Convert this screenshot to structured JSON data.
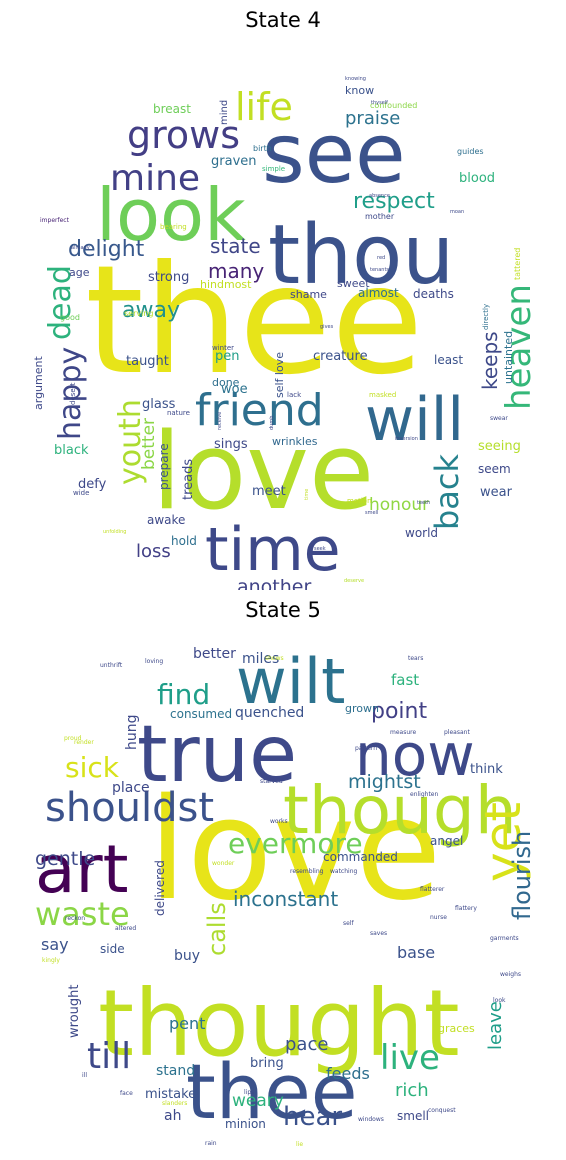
{
  "chart_data": [
    {
      "type": "wordcloud",
      "title": "State 4",
      "words": [
        {
          "text": "thee",
          "weight": 1.0,
          "color": "#e7e419"
        },
        {
          "text": "love",
          "weight": 0.82,
          "color": "#b5de2b"
        },
        {
          "text": "see",
          "weight": 0.6,
          "color": "#3b528b"
        },
        {
          "text": "thou",
          "weight": 0.6,
          "color": "#3b528b"
        },
        {
          "text": "look",
          "weight": 0.55,
          "color": "#6ece58"
        },
        {
          "text": "time",
          "weight": 0.48,
          "color": "#3e4989"
        },
        {
          "text": "will",
          "weight": 0.45,
          "color": "#31688e"
        },
        {
          "text": "friend",
          "weight": 0.38,
          "color": "#2e6f8e"
        },
        {
          "text": "grows",
          "weight": 0.3,
          "color": "#433e85"
        },
        {
          "text": "life",
          "weight": 0.3,
          "color": "#c2df23"
        },
        {
          "text": "mine",
          "weight": 0.27,
          "color": "#424086"
        },
        {
          "text": "dead",
          "weight": 0.28,
          "color": "#2db27d"
        },
        {
          "text": "heaven",
          "weight": 0.28,
          "color": "#35b779"
        },
        {
          "text": "youth",
          "weight": 0.27,
          "color": "#addc30"
        },
        {
          "text": "happy",
          "weight": 0.27,
          "color": "#3f4788"
        },
        {
          "text": "back",
          "weight": 0.27,
          "color": "#26828e"
        },
        {
          "text": "delight",
          "weight": 0.2,
          "color": "#38588c"
        },
        {
          "text": "respect",
          "weight": 0.2,
          "color": "#1f9e89"
        },
        {
          "text": "state",
          "weight": 0.18,
          "color": "#404688"
        },
        {
          "text": "many",
          "weight": 0.18,
          "color": "#482475"
        },
        {
          "text": "away",
          "weight": 0.18,
          "color": "#21918c"
        },
        {
          "text": "keeps",
          "weight": 0.18,
          "color": "#3e4989"
        },
        {
          "text": "praise",
          "weight": 0.16,
          "color": "#2c728e"
        },
        {
          "text": "another",
          "weight": 0.16,
          "color": "#414487"
        },
        {
          "text": "loss",
          "weight": 0.15,
          "color": "#424086"
        },
        {
          "text": "honour",
          "weight": 0.14,
          "color": "#90d743"
        },
        {
          "text": "better",
          "weight": 0.15,
          "color": "#8bd646"
        },
        {
          "text": "strong",
          "weight": 0.12,
          "color": "#3e4989"
        },
        {
          "text": "creature",
          "weight": 0.12,
          "color": "#3b528b"
        },
        {
          "text": "wrinkles",
          "weight": 0.11,
          "color": "#31688e"
        },
        {
          "text": "shame",
          "weight": 0.1,
          "color": "#3f4788"
        },
        {
          "text": "almost",
          "weight": 0.1,
          "color": "#2e6f8e"
        },
        {
          "text": "deaths",
          "weight": 0.1,
          "color": "#3e4989"
        },
        {
          "text": "taught",
          "weight": 0.1,
          "color": "#3b528b"
        },
        {
          "text": "woe",
          "weight": 0.1,
          "color": "#2c728e"
        },
        {
          "text": "pen",
          "weight": 0.1,
          "color": "#1f9e89"
        },
        {
          "text": "done",
          "weight": 0.09,
          "color": "#2e6f8e"
        },
        {
          "text": "glass",
          "weight": 0.1,
          "color": "#3b528b"
        },
        {
          "text": "sings",
          "weight": 0.1,
          "color": "#3e4989"
        },
        {
          "text": "treads",
          "weight": 0.1,
          "color": "#3e4989"
        },
        {
          "text": "prepare",
          "weight": 0.09,
          "color": "#3b528b"
        },
        {
          "text": "defy",
          "weight": 0.1,
          "color": "#3e4989"
        },
        {
          "text": "black",
          "weight": 0.1,
          "color": "#2db27d"
        },
        {
          "text": "argument",
          "weight": 0.09,
          "color": "#3e4989"
        },
        {
          "text": "seeing",
          "weight": 0.1,
          "color": "#b5de2b"
        },
        {
          "text": "seem",
          "weight": 0.09,
          "color": "#3e4989"
        },
        {
          "text": "wear",
          "weight": 0.1,
          "color": "#3b528b"
        },
        {
          "text": "least",
          "weight": 0.09,
          "color": "#3b528b"
        },
        {
          "text": "untainted",
          "weight": 0.09,
          "color": "#2c728e"
        },
        {
          "text": "awake",
          "weight": 0.09,
          "color": "#3e4989"
        },
        {
          "text": "meet",
          "weight": 0.09,
          "color": "#3b528b"
        },
        {
          "text": "world",
          "weight": 0.09,
          "color": "#3e4989"
        },
        {
          "text": "hold",
          "weight": 0.09,
          "color": "#2e6f8e"
        },
        {
          "text": "blood",
          "weight": 0.1,
          "color": "#2db27d"
        },
        {
          "text": "graven",
          "weight": 0.1,
          "color": "#2e6f8e"
        },
        {
          "text": "breast",
          "weight": 0.1,
          "color": "#6ece58"
        },
        {
          "text": "mind",
          "weight": 0.08,
          "color": "#3e4989"
        },
        {
          "text": "know",
          "weight": 0.08,
          "color": "#3b528b"
        },
        {
          "text": "hindmost",
          "weight": 0.08,
          "color": "#c2df23"
        },
        {
          "text": "sweet",
          "weight": 0.08,
          "color": "#3e4989"
        },
        {
          "text": "self love",
          "weight": 0.08,
          "color": "#3b528b"
        },
        {
          "text": "age",
          "weight": 0.08,
          "color": "#3e4989"
        },
        {
          "text": "good",
          "weight": 0.05,
          "color": "#6ece58"
        },
        {
          "text": "serving",
          "weight": 0.05,
          "color": "#b5de2b"
        },
        {
          "text": "confounded",
          "weight": 0.05,
          "color": "#8bd646"
        },
        {
          "text": "birth",
          "weight": 0.05,
          "color": "#2e6f8e"
        },
        {
          "text": "simple",
          "weight": 0.04,
          "color": "#35b779"
        },
        {
          "text": "mother",
          "weight": 0.04,
          "color": "#3e4989"
        },
        {
          "text": "guides",
          "weight": 0.04,
          "color": "#2e6f8e"
        },
        {
          "text": "tattered",
          "weight": 0.04,
          "color": "#c2df23"
        },
        {
          "text": "directly",
          "weight": 0.04,
          "color": "#2e6f8e"
        },
        {
          "text": "masked",
          "weight": 0.04,
          "color": "#c2df23"
        },
        {
          "text": "motion",
          "weight": 0.04,
          "color": "#c2df23"
        },
        {
          "text": "winter",
          "weight": 0.04,
          "color": "#3e4989"
        },
        {
          "text": "nature",
          "weight": 0.04,
          "color": "#3e4989"
        },
        {
          "text": "lack",
          "weight": 0.04,
          "color": "#3e4989"
        },
        {
          "text": "desert",
          "weight": 0.04,
          "color": "#3e4989"
        },
        {
          "text": "wide",
          "weight": 0.04,
          "color": "#3e4989"
        },
        {
          "text": "imperfect",
          "weight": 0.03,
          "color": "#482475"
        },
        {
          "text": "bearing",
          "weight": 0.03,
          "color": "#c2df23"
        },
        {
          "text": "already",
          "weight": 0.03,
          "color": "#3e4989"
        },
        {
          "text": "unfolding",
          "weight": 0.03,
          "color": "#c2df23"
        },
        {
          "text": "receive",
          "weight": 0.03,
          "color": "#3e4989"
        },
        {
          "text": "dumb",
          "weight": 0.03,
          "color": "#3e4989"
        },
        {
          "text": "gives",
          "weight": 0.03,
          "color": "#3e4989"
        },
        {
          "text": "red",
          "weight": 0.03,
          "color": "#3e4989"
        },
        {
          "text": "swear",
          "weight": 0.03,
          "color": "#3e4989"
        },
        {
          "text": "inversion",
          "weight": 0.03,
          "color": "#3e4989"
        },
        {
          "text": "tenants",
          "weight": 0.03,
          "color": "#3e4989"
        },
        {
          "text": "absence",
          "weight": 0.03,
          "color": "#3e4989"
        },
        {
          "text": "moan",
          "weight": 0.03,
          "color": "#3e4989"
        },
        {
          "text": "thyself",
          "weight": 0.03,
          "color": "#3e4989"
        },
        {
          "text": "knowing",
          "weight": 0.03,
          "color": "#3e4989"
        },
        {
          "text": "deserve",
          "weight": 0.03,
          "color": "#b5de2b"
        },
        {
          "text": "seek",
          "weight": 0.03,
          "color": "#3e4989"
        },
        {
          "text": "smell",
          "weight": 0.03,
          "color": "#3e4989"
        },
        {
          "text": "teeth",
          "weight": 0.03,
          "color": "#3e4989"
        },
        {
          "text": "time",
          "weight": 0.03,
          "color": "#c2df23"
        }
      ]
    },
    {
      "type": "wordcloud",
      "title": "State 5",
      "words": [
        {
          "text": "love",
          "weight": 1.0,
          "color": "#e7e419"
        },
        {
          "text": "thought",
          "weight": 0.68,
          "color": "#c2df23"
        },
        {
          "text": "true",
          "weight": 0.62,
          "color": "#3e4989"
        },
        {
          "text": "thee",
          "weight": 0.55,
          "color": "#3b528b"
        },
        {
          "text": "though",
          "weight": 0.5,
          "color": "#b5de2b"
        },
        {
          "text": "art",
          "weight": 0.5,
          "color": "#440154"
        },
        {
          "text": "wilt",
          "weight": 0.45,
          "color": "#2c728e"
        },
        {
          "text": "now",
          "weight": 0.45,
          "color": "#3e4989"
        },
        {
          "text": "yet",
          "weight": 0.42,
          "color": "#d8e219"
        },
        {
          "text": "shouldst",
          "weight": 0.35,
          "color": "#3b528b"
        },
        {
          "text": "waste",
          "weight": 0.28,
          "color": "#8bd646"
        },
        {
          "text": "till",
          "weight": 0.27,
          "color": "#3e4989"
        },
        {
          "text": "live",
          "weight": 0.27,
          "color": "#2db27d"
        },
        {
          "text": "evermore",
          "weight": 0.24,
          "color": "#6ece58"
        },
        {
          "text": "find",
          "weight": 0.22,
          "color": "#1f9e89"
        },
        {
          "text": "sick",
          "weight": 0.22,
          "color": "#d8e219"
        },
        {
          "text": "calls",
          "weight": 0.2,
          "color": "#addc30"
        },
        {
          "text": "flourish",
          "weight": 0.2,
          "color": "#31688e"
        },
        {
          "text": "hear",
          "weight": 0.2,
          "color": "#3b528b"
        },
        {
          "text": "point",
          "weight": 0.17,
          "color": "#424086"
        },
        {
          "text": "inconstant",
          "weight": 0.17,
          "color": "#2c728e"
        },
        {
          "text": "gentle",
          "weight": 0.15,
          "color": "#3e4989"
        },
        {
          "text": "mightst",
          "weight": 0.15,
          "color": "#2c728e"
        },
        {
          "text": "pace",
          "weight": 0.16,
          "color": "#3b528b"
        },
        {
          "text": "feeds",
          "weight": 0.14,
          "color": "#2e6f8e"
        },
        {
          "text": "rich",
          "weight": 0.14,
          "color": "#2db27d"
        },
        {
          "text": "say",
          "weight": 0.14,
          "color": "#3b528b"
        },
        {
          "text": "leave",
          "weight": 0.14,
          "color": "#1f9e89"
        },
        {
          "text": "fast",
          "weight": 0.13,
          "color": "#2db27d"
        },
        {
          "text": "miles",
          "weight": 0.12,
          "color": "#3b528b"
        },
        {
          "text": "better",
          "weight": 0.12,
          "color": "#3e4989"
        },
        {
          "text": "quenched",
          "weight": 0.12,
          "color": "#3b528b"
        },
        {
          "text": "consumed",
          "weight": 0.11,
          "color": "#2c728e"
        },
        {
          "text": "grown",
          "weight": 0.1,
          "color": "#2e6f8e"
        },
        {
          "text": "hung",
          "weight": 0.1,
          "color": "#3e4989"
        },
        {
          "text": "place",
          "weight": 0.11,
          "color": "#3e4989"
        },
        {
          "text": "think",
          "weight": 0.11,
          "color": "#3b528b"
        },
        {
          "text": "angel",
          "weight": 0.12,
          "color": "#3b528b"
        },
        {
          "text": "commanded",
          "weight": 0.11,
          "color": "#3b528b"
        },
        {
          "text": "delivered",
          "weight": 0.1,
          "color": "#3e4989"
        },
        {
          "text": "buy",
          "weight": 0.12,
          "color": "#3b528b"
        },
        {
          "text": "base",
          "weight": 0.13,
          "color": "#3b528b"
        },
        {
          "text": "side",
          "weight": 0.1,
          "color": "#3b528b"
        },
        {
          "text": "wrought",
          "weight": 0.1,
          "color": "#3e4989"
        },
        {
          "text": "pent",
          "weight": 0.13,
          "color": "#2c728e"
        },
        {
          "text": "bring",
          "weight": 0.12,
          "color": "#3b528b"
        },
        {
          "text": "stand",
          "weight": 0.12,
          "color": "#2c728e"
        },
        {
          "text": "mistake",
          "weight": 0.11,
          "color": "#3b528b"
        },
        {
          "text": "weary",
          "weight": 0.14,
          "color": "#2db27d"
        },
        {
          "text": "ah",
          "weight": 0.11,
          "color": "#3e4989"
        },
        {
          "text": "minion",
          "weight": 0.1,
          "color": "#3b528b"
        },
        {
          "text": "smell",
          "weight": 0.1,
          "color": "#3e4989"
        },
        {
          "text": "graces",
          "weight": 0.08,
          "color": "#c2df23"
        },
        {
          "text": "unthrift",
          "weight": 0.04,
          "color": "#3e4989"
        },
        {
          "text": "loving",
          "weight": 0.04,
          "color": "#3e4989"
        },
        {
          "text": "proud",
          "weight": 0.04,
          "color": "#c2df23"
        },
        {
          "text": "render",
          "weight": 0.04,
          "color": "#c2df23"
        },
        {
          "text": "pattern",
          "weight": 0.04,
          "color": "#3e4989"
        },
        {
          "text": "measure",
          "weight": 0.04,
          "color": "#3e4989"
        },
        {
          "text": "pleasant",
          "weight": 0.04,
          "color": "#3e4989"
        },
        {
          "text": "enlighten",
          "weight": 0.04,
          "color": "#3e4989"
        },
        {
          "text": "starved",
          "weight": 0.04,
          "color": "#3e4989"
        },
        {
          "text": "works",
          "weight": 0.04,
          "color": "#3e4989"
        },
        {
          "text": "wonder",
          "weight": 0.04,
          "color": "#c2df23"
        },
        {
          "text": "resembling",
          "weight": 0.04,
          "color": "#3e4989"
        },
        {
          "text": "watching",
          "weight": 0.04,
          "color": "#3e4989"
        },
        {
          "text": "flatterer",
          "weight": 0.04,
          "color": "#3e4989"
        },
        {
          "text": "flattery",
          "weight": 0.04,
          "color": "#3e4989"
        },
        {
          "text": "reckon",
          "weight": 0.04,
          "color": "#3e4989"
        },
        {
          "text": "altered",
          "weight": 0.04,
          "color": "#3e4989"
        },
        {
          "text": "kingly",
          "weight": 0.04,
          "color": "#c2df23"
        },
        {
          "text": "garments",
          "weight": 0.04,
          "color": "#3e4989"
        },
        {
          "text": "weighs",
          "weight": 0.04,
          "color": "#3e4989"
        },
        {
          "text": "nurse",
          "weight": 0.04,
          "color": "#3e4989"
        },
        {
          "text": "slanders",
          "weight": 0.04,
          "color": "#c2df23"
        },
        {
          "text": "conquest",
          "weight": 0.04,
          "color": "#3e4989"
        },
        {
          "text": "windows",
          "weight": 0.04,
          "color": "#3e4989"
        },
        {
          "text": "lips",
          "weight": 0.04,
          "color": "#3e4989"
        },
        {
          "text": "face",
          "weight": 0.04,
          "color": "#3e4989"
        },
        {
          "text": "saves",
          "weight": 0.04,
          "color": "#3e4989"
        },
        {
          "text": "self",
          "weight": 0.04,
          "color": "#3e4989"
        },
        {
          "text": "ill",
          "weight": 0.04,
          "color": "#3e4989"
        },
        {
          "text": "look",
          "weight": 0.04,
          "color": "#3e4989"
        },
        {
          "text": "rain",
          "weight": 0.04,
          "color": "#3e4989"
        },
        {
          "text": "tears",
          "weight": 0.04,
          "color": "#3e4989"
        },
        {
          "text": "shows",
          "weight": 0.04,
          "color": "#c2df23"
        },
        {
          "text": "lie",
          "weight": 0.04,
          "color": "#c2df23"
        }
      ]
    }
  ]
}
